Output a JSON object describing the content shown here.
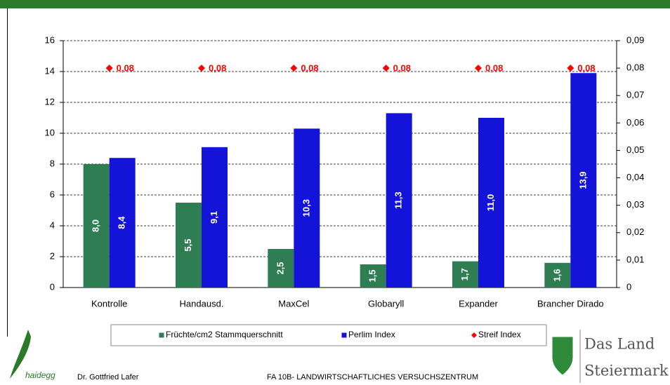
{
  "chart_data": {
    "type": "bar",
    "categories": [
      "Kontrolle",
      "Handausd.",
      "MaxCel",
      "Globaryll",
      "Expander",
      "Brancher Dirado"
    ],
    "series": [
      {
        "name": "Früchte/cm2 Stammquerschnitt",
        "type": "bar",
        "color": "#2f7d52",
        "values": [
          8.0,
          5.5,
          2.5,
          1.5,
          1.7,
          1.6
        ],
        "value_labels": [
          "8,0",
          "5,5",
          "2,5",
          "1,5",
          "1,7",
          "1,6"
        ]
      },
      {
        "name": "Perlim Index",
        "type": "bar",
        "color": "#1414d8",
        "values": [
          8.4,
          9.1,
          10.3,
          11.3,
          11.0,
          13.9
        ],
        "value_labels": [
          "8,4",
          "9,1",
          "10,3",
          "11,3",
          "11,0",
          "13,9"
        ]
      },
      {
        "name": "Streif Index",
        "type": "scatter",
        "axis": "y2",
        "color": "#ff0000",
        "values": [
          0.08,
          0.08,
          0.08,
          0.08,
          0.08,
          0.08
        ],
        "value_labels": [
          "0,08",
          "0,08",
          "0,08",
          "0,08",
          "0,08",
          "0,08"
        ]
      }
    ],
    "ylim": [
      0,
      16
    ],
    "yticks": [
      0,
      2,
      4,
      6,
      8,
      10,
      12,
      14,
      16
    ],
    "y2lim": [
      0,
      0.09
    ],
    "y2ticks": [
      {
        "value": 0,
        "label": "0"
      },
      {
        "value": 0.01,
        "label": "0,01"
      },
      {
        "value": 0.02,
        "label": "0,02"
      },
      {
        "value": 0.03,
        "label": "0,03"
      },
      {
        "value": 0.04,
        "label": "0,04"
      },
      {
        "value": 0.05,
        "label": "0,05"
      },
      {
        "value": 0.06,
        "label": "0,06"
      },
      {
        "value": 0.07,
        "label": "0,07"
      },
      {
        "value": 0.08,
        "label": "0,08"
      },
      {
        "value": 0.09,
        "label": "0,09"
      }
    ],
    "grid": true,
    "legend": "bottom"
  },
  "footer": {
    "logo": "haidegg",
    "author": "Dr. Gottfried Lafer",
    "institution": "FA 10B- LANDWIRTSCHAFTLICHES VERSUCHSZENTRUM",
    "brand_line1": "Das Land",
    "brand_line2": "Steiermark"
  }
}
